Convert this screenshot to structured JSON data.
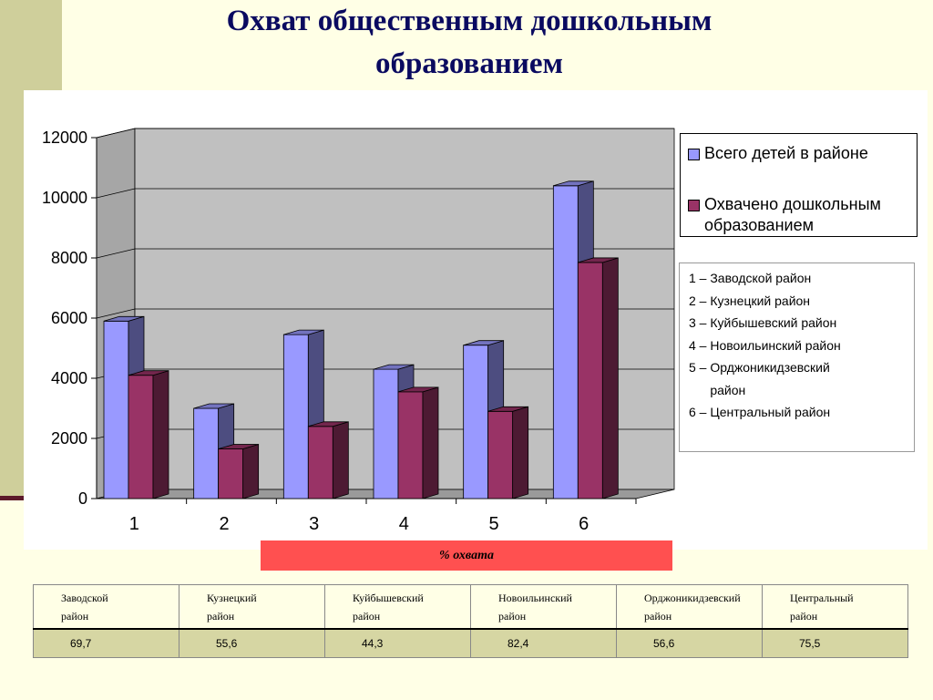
{
  "slide": {
    "title_line1": "Охват общественным дошкольным",
    "title_line2": "образованием",
    "background": "#ffffe6",
    "accent": "#cfcf9b"
  },
  "chart_data": {
    "type": "bar",
    "categories": [
      "1",
      "2",
      "3",
      "4",
      "5",
      "6"
    ],
    "series": [
      {
        "name": "Всего детей в районе",
        "values": [
          5900,
          3000,
          5450,
          4300,
          5100,
          10400
        ],
        "color": "#9999ff"
      },
      {
        "name": "Охвачено дошкольным образованием",
        "values": [
          4100,
          1650,
          2400,
          3550,
          2900,
          7850
        ],
        "color": "#993366"
      }
    ],
    "yticks": [
      "0",
      "2000",
      "4000",
      "6000",
      "8000",
      "10000",
      "12000"
    ],
    "ylim": [
      0,
      12000
    ],
    "grid": true,
    "legend_position": "right"
  },
  "districts": [
    "1 – Заводской район",
    "2 – Кузнецкий район",
    "3 – Куйбышевский район",
    "4 – Новоильинский район",
    "5 – Орджоникидзевский",
    "      район",
    "6 – Центральный район"
  ],
  "coverage": {
    "label": "% охвата",
    "headers": [
      "Заводской\n    район",
      "Кузнецкий\n    район",
      "Куйбышевский\n        район",
      "Новоильинский\n        район",
      "Орджоникидзевский\n            район",
      "Центральный\n        район"
    ],
    "values": [
      "69,7",
      "55,6",
      "44,3",
      "82,4",
      "56,6",
      "75,5"
    ]
  }
}
